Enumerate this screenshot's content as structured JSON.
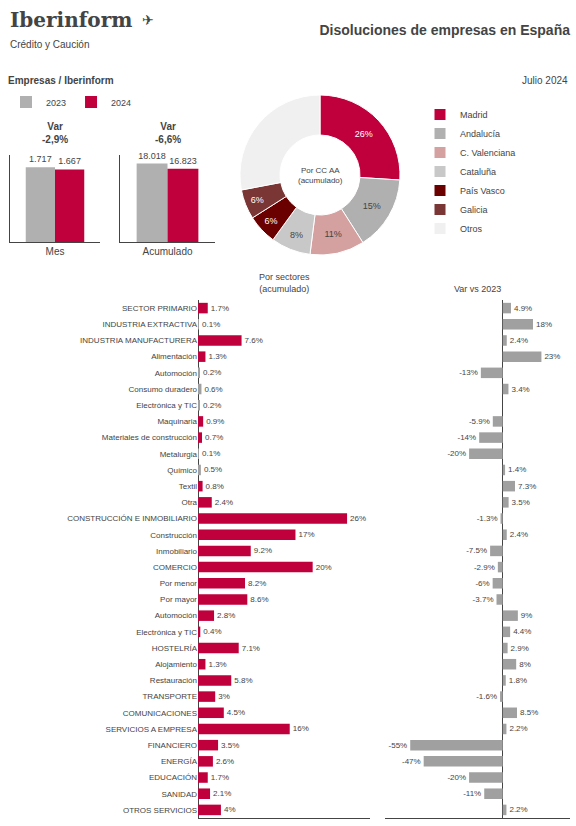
{
  "chart_data": [
    {
      "type": "bar",
      "title": "Disoluciones de empresas en España",
      "subtitle": [
        "Empresas / Iberinform",
        "Julio 2024"
      ],
      "annotations": [
        "Iberinform",
        "✈",
        "Crédito y Caución",
        "Var\n-2,9%"
      ],
      "categories": [
        "Mes"
      ],
      "series": [
        {
          "name": "2023",
          "color": "#b0b0b0",
          "values": [
            1717
          ],
          "value_labels": [
            "1.717"
          ]
        },
        {
          "name": "2024",
          "color": "#c0003c",
          "values": [
            1667
          ],
          "value_labels": [
            "1.667"
          ]
        }
      ],
      "ylim": [
        0,
        2000
      ],
      "tick_labels": "x",
      "data_labels": true,
      "legend": "top"
    },
    {
      "type": "bar",
      "annotations": [
        "Var\n-6,6%"
      ],
      "categories": [
        "Acumulado"
      ],
      "series": [
        {
          "name": "2023",
          "color": "#b0b0b0",
          "values": [
            18018
          ],
          "value_labels": [
            "18.018"
          ]
        },
        {
          "name": "2024",
          "color": "#c0003c",
          "values": [
            16823
          ],
          "value_labels": [
            "16.823"
          ]
        }
      ],
      "ylim": [
        0,
        20000
      ],
      "tick_labels": "x",
      "data_labels": true
    },
    {
      "type": "pie",
      "categories": [
        "Madrid",
        "Andalucía",
        "C. Valenciana",
        "Cataluña",
        "País Vasco",
        "Galicia",
        "Otros"
      ],
      "values": [
        26,
        15,
        11,
        8,
        6,
        6,
        28
      ],
      "value_labels": [
        "26%",
        "15%",
        "11%",
        "8%",
        "6%",
        "6%",
        null
      ],
      "colors": [
        "#c0003c",
        "#b0b0b0",
        "#d4a0a0",
        "#c8c8c8",
        "#6b0000",
        "#7a3535",
        "#f0f0f0"
      ],
      "annotations": [
        "Por CC AA\n(acumulado)"
      ],
      "data_labels": true,
      "legend": "right"
    },
    {
      "type": "bar",
      "title": "Por sectores\n(acumulado)",
      "orientation": "horizontal",
      "categories": [
        "SECTOR PRIMARIO",
        "INDUSTRIA EXTRACTIVA",
        "INDUSTRIA MANUFACTURERA",
        "Alimentación",
        "Automoción",
        "Consumo duradero",
        "Electrónica y TIC",
        "Maquinaria",
        "Materiales de construcción",
        "Metalurgia",
        "Químico",
        "Textil",
        "Otra",
        "CONSTRUCCIÓN E INMOBILIARIO",
        "Construcción",
        "Inmobiliario",
        "COMERCIO",
        "Por menor",
        "Por mayor",
        "Automoción",
        "Electrónica y TIC",
        "HOSTELRÍA",
        "Alojamiento",
        "Restauración",
        "TRANSPORTE",
        "COMUNICACIONES",
        "SERVICIOS A EMPRESA",
        "FINANCIERO",
        "ENERGÍA",
        "EDUCACIÓN",
        "SANIDAD",
        "OTROS SERVICIOS"
      ],
      "values": [
        1.7,
        0.1,
        7.6,
        1.3,
        0.2,
        0.6,
        0.2,
        0.9,
        0.7,
        0.1,
        0.5,
        0.8,
        2.4,
        26,
        17,
        9.2,
        20,
        8.2,
        8.6,
        2.8,
        0.4,
        7.1,
        1.3,
        5.8,
        3,
        4.5,
        16,
        3.5,
        2.6,
        1.7,
        2.1,
        4
      ],
      "value_labels": [
        "1.7%",
        "0.1%",
        "7.6%",
        "1.3%",
        "0.2%",
        "0.6%",
        "0.2%",
        "0.9%",
        "0.7%",
        "0.1%",
        "0.5%",
        "0.8%",
        "2.4%",
        "26%",
        "17%",
        "9.2%",
        "20%",
        "8.2%",
        "8.6%",
        "2.8%",
        "0.4%",
        "7.1%",
        "1.3%",
        "5.8%",
        "3%",
        "4.5%",
        "16%",
        "3.5%",
        "2.6%",
        "1.7%",
        "2.1%",
        "4%"
      ],
      "colors": [
        "#c0003c",
        "#a0a0a0",
        "#c0003c",
        "#c0003c",
        "#a0a0a0",
        "#a0a0a0",
        "#a0a0a0",
        "#c0003c",
        "#c0003c",
        "#a0a0a0",
        "#a0a0a0",
        "#c0003c",
        "#c0003c",
        "#c0003c",
        "#c0003c",
        "#c0003c",
        "#c0003c",
        "#c0003c",
        "#c0003c",
        "#c0003c",
        "#c0003c",
        "#c0003c",
        "#c0003c",
        "#c0003c",
        "#c0003c",
        "#c0003c",
        "#c0003c",
        "#c0003c",
        "#c0003c",
        "#c0003c",
        "#c0003c",
        "#c0003c"
      ],
      "xlim": [
        0,
        30
      ],
      "tick_labels": "y",
      "data_labels": true
    },
    {
      "type": "bar",
      "title": "Var vs 2023",
      "orientation": "horizontal",
      "categories": [
        "SECTOR PRIMARIO",
        "INDUSTRIA EXTRACTIVA",
        "INDUSTRIA MANUFACTURERA",
        "Alimentación",
        "Automoción",
        "Consumo duradero",
        "Electrónica y TIC",
        "Maquinaria",
        "Materiales de construcción",
        "Metalurgia",
        "Químico",
        "Textil",
        "Otra",
        "CONSTRUCCIÓN E INMOBILIARIO",
        "Construcción",
        "Inmobiliario",
        "COMERCIO",
        "Por menor",
        "Por mayor",
        "Automoción",
        "Electrónica y TIC",
        "HOSTELRÍA",
        "Alojamiento",
        "Restauración",
        "TRANSPORTE",
        "COMUNICACIONES",
        "SERVICIOS A EMPRESA",
        "FINANCIERO",
        "ENERGÍA",
        "EDUCACIÓN",
        "SANIDAD",
        "OTROS SERVICIOS"
      ],
      "values": [
        4.9,
        18,
        2.4,
        23,
        -13,
        3.4,
        0,
        -5.9,
        -14,
        -20,
        1.4,
        7.3,
        3.5,
        -1.3,
        2.4,
        -7.5,
        -2.9,
        -6,
        -3.7,
        9,
        4.4,
        2.9,
        8,
        1.8,
        -1.6,
        8.5,
        2.2,
        -55,
        -47,
        -20,
        -11,
        2.2
      ],
      "value_labels": [
        "4.9%",
        "18%",
        "2.4%",
        "23%",
        "-13%",
        "3.4%",
        null,
        "-5.9%",
        "-14%",
        "-20%",
        "1.4%",
        "7.3%",
        "3.5%",
        "-1.3%",
        "2.4%",
        "-7.5%",
        "-2.9%",
        "-6%",
        "-3.7%",
        "9%",
        "4.4%",
        "2.9%",
        "8%",
        "1.8%",
        "-1.6%",
        "8.5%",
        "2.2%",
        "-55%",
        "-47%",
        "-20%",
        "-11%",
        "2.2%"
      ],
      "color": "#a0a0a0",
      "xlim": [
        -70,
        40
      ],
      "tick_labels": false,
      "data_labels": true
    }
  ]
}
